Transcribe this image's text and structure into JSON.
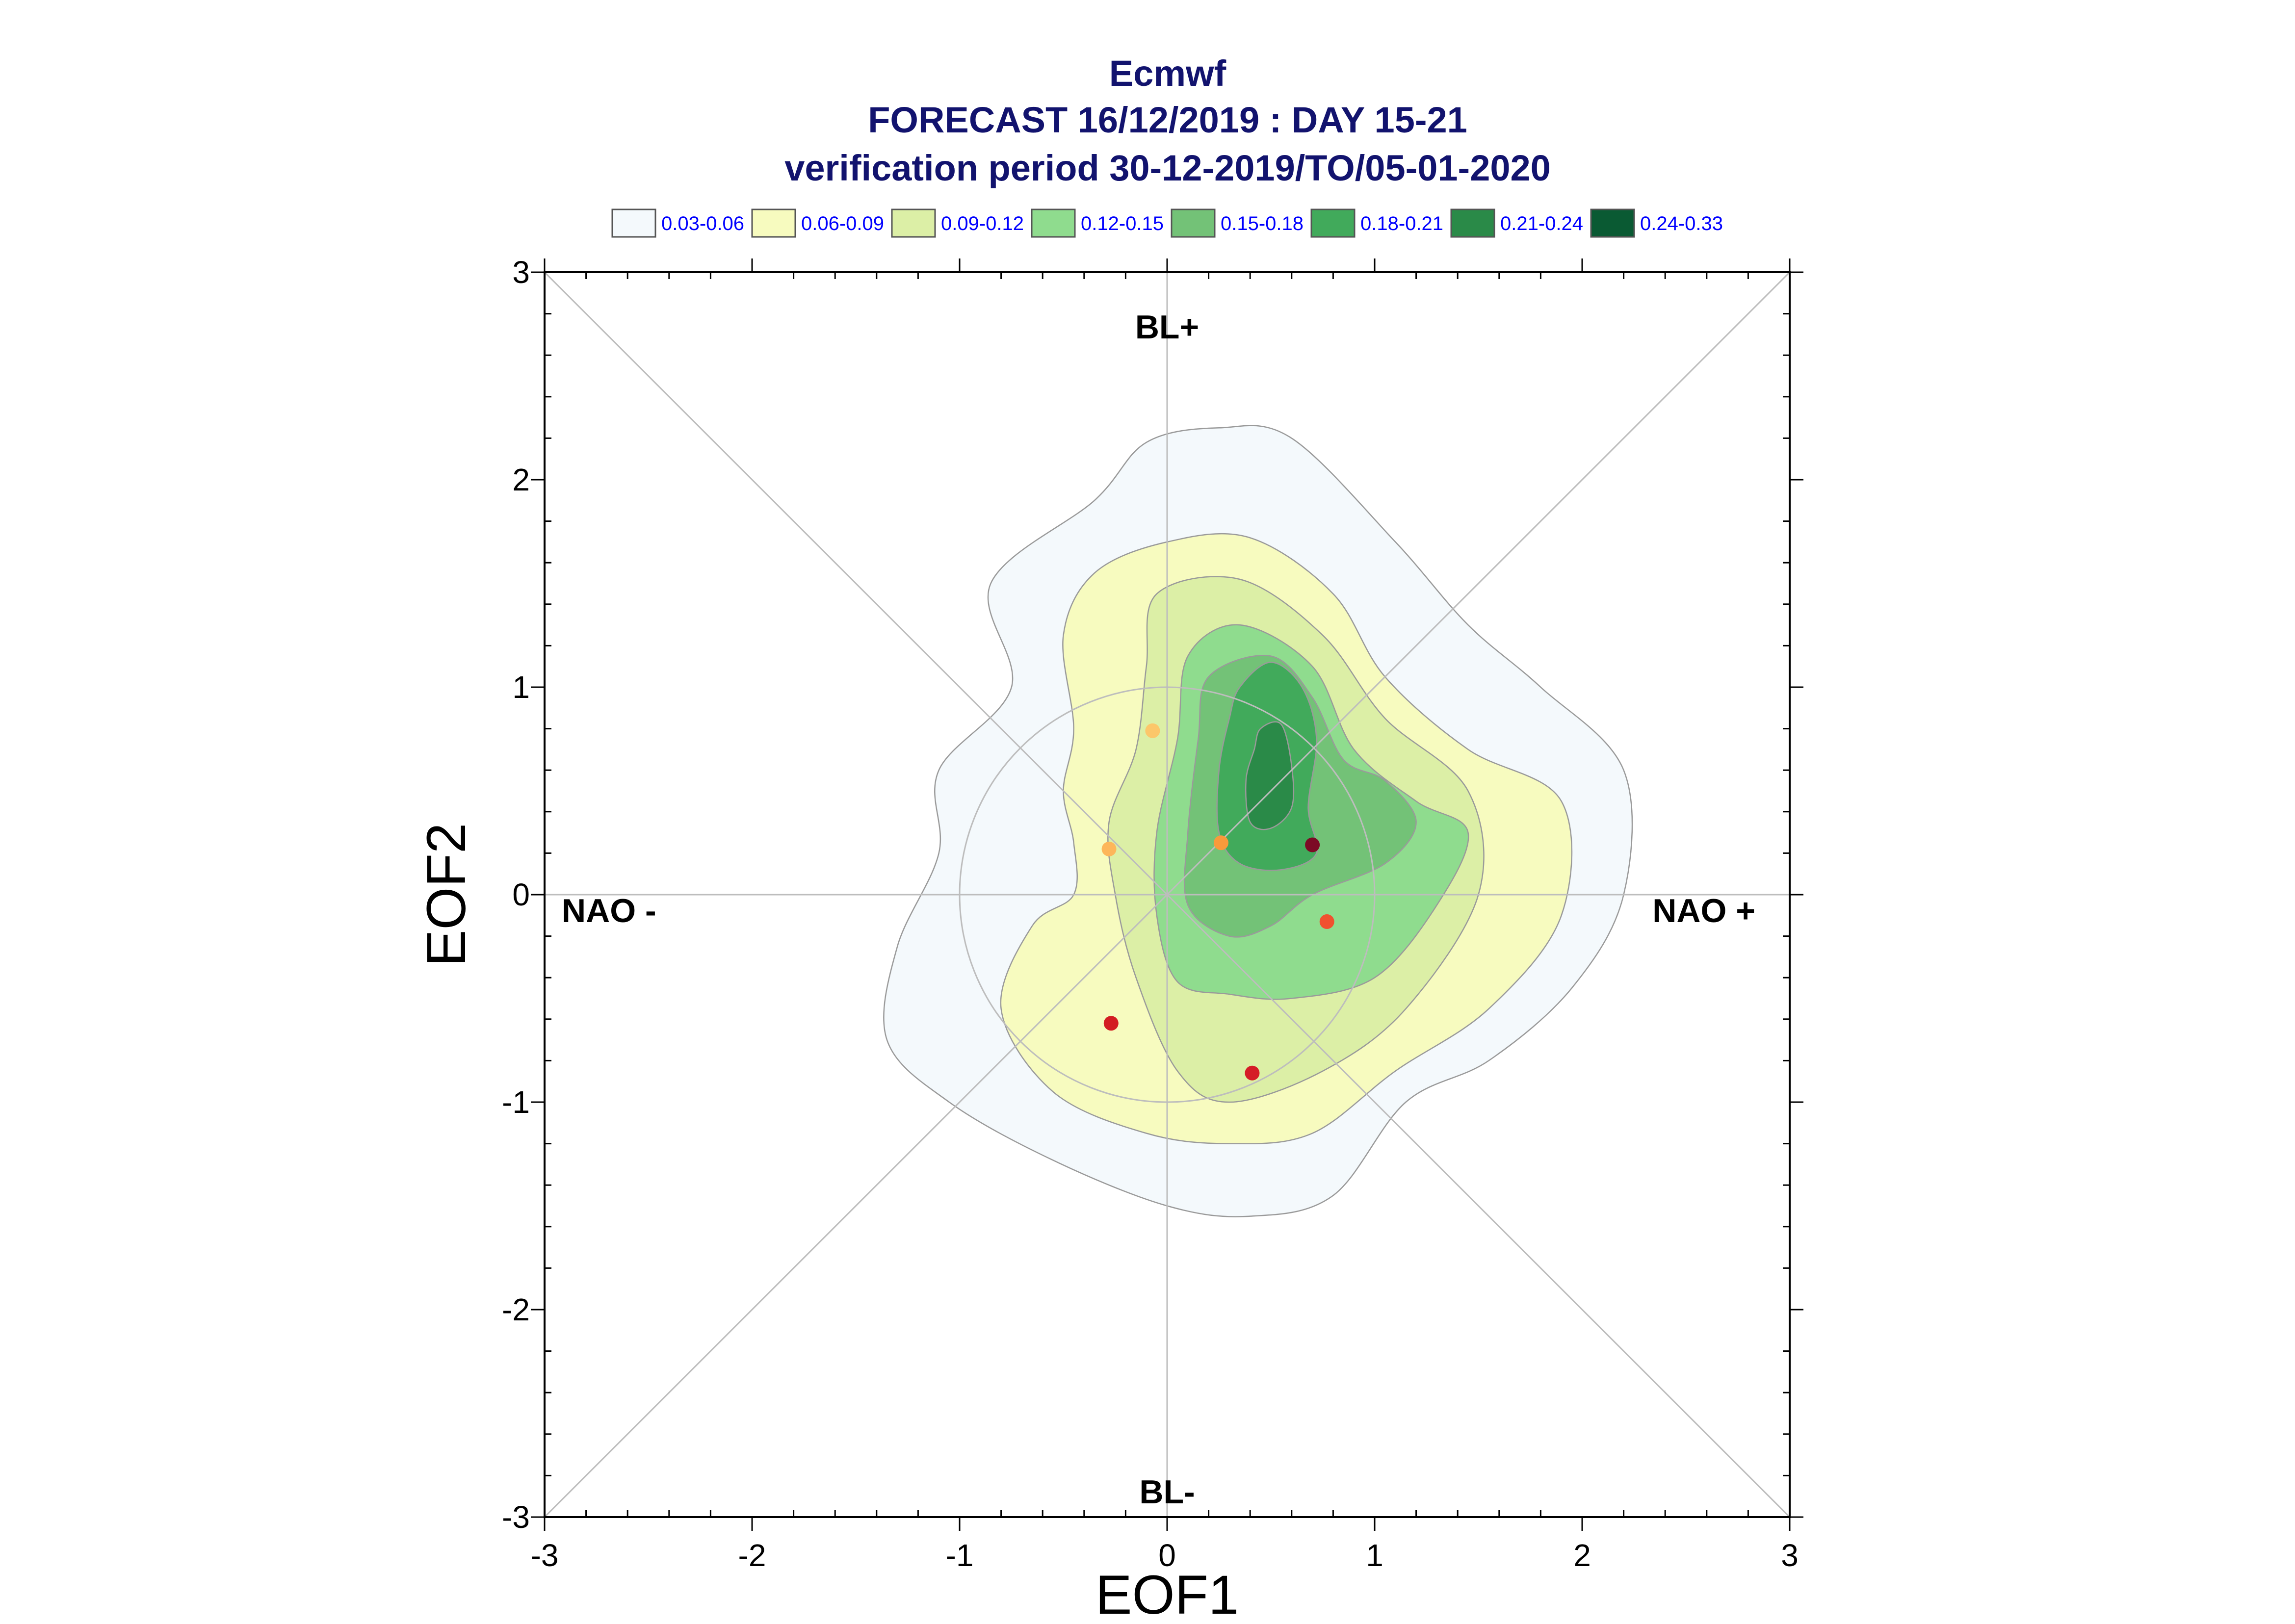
{
  "chart_data": {
    "type": "contour",
    "title_lines": [
      "Ecmwf",
      "FORECAST 16/12/2019 : DAY 15-21",
      "verification period 30-12-2019/TO/05-01-2020"
    ],
    "xlabel": "EOF1",
    "ylabel": "EOF2",
    "xlim": [
      -3,
      3
    ],
    "ylim": [
      -3,
      3
    ],
    "xticks": [
      "-3",
      "-2",
      "-1",
      "0",
      "1",
      "2",
      "3"
    ],
    "yticks": [
      "3",
      "2",
      "1",
      "0",
      "-1",
      "-2",
      "-3"
    ],
    "regime_labels": {
      "top": "BL+",
      "bottom": "BL-",
      "left": "NAO -",
      "right": "NAO +"
    },
    "legend": [
      {
        "label": "0.03-0.06",
        "color": "#f4f9fc"
      },
      {
        "label": "0.06-0.09",
        "color": "#f7fbbf"
      },
      {
        "label": "0.09-0.12",
        "color": "#dcefa6"
      },
      {
        "label": "0.12-0.15",
        "color": "#8fdc8e"
      },
      {
        "label": "0.15-0.18",
        "color": "#73c277"
      },
      {
        "label": "0.18-0.21",
        "color": "#41aa5b"
      },
      {
        "label": "0.21-0.24",
        "color": "#2a8a48"
      },
      {
        "label": "0.24-0.33",
        "color": "#0a5a33"
      }
    ],
    "reference_circle_radius": 1,
    "contours": [
      {
        "level": "0.03-0.06",
        "points": [
          [
            -0.35,
            1.9
          ],
          [
            -0.1,
            2.18
          ],
          [
            0.25,
            2.25
          ],
          [
            0.6,
            2.2
          ],
          [
            1.1,
            1.7
          ],
          [
            1.45,
            1.3
          ],
          [
            1.8,
            1.0
          ],
          [
            2.2,
            0.6
          ],
          [
            2.2,
            0.0
          ],
          [
            1.95,
            -0.45
          ],
          [
            1.55,
            -0.8
          ],
          [
            1.15,
            -1.0
          ],
          [
            0.8,
            -1.45
          ],
          [
            0.4,
            -1.55
          ],
          [
            0.0,
            -1.5
          ],
          [
            -0.55,
            -1.28
          ],
          [
            -1.05,
            -1.0
          ],
          [
            -1.35,
            -0.7
          ],
          [
            -1.3,
            -0.25
          ],
          [
            -1.1,
            0.2
          ],
          [
            -1.1,
            0.6
          ],
          [
            -0.75,
            1.0
          ],
          [
            -0.85,
            1.5
          ]
        ]
      },
      {
        "level": "0.06-0.09",
        "points": [
          [
            -0.35,
            1.55
          ],
          [
            0.0,
            1.7
          ],
          [
            0.4,
            1.72
          ],
          [
            0.8,
            1.45
          ],
          [
            1.05,
            1.05
          ],
          [
            1.45,
            0.7
          ],
          [
            1.9,
            0.45
          ],
          [
            1.9,
            -0.1
          ],
          [
            1.55,
            -0.55
          ],
          [
            1.1,
            -0.85
          ],
          [
            0.7,
            -1.15
          ],
          [
            0.3,
            -1.2
          ],
          [
            -0.1,
            -1.15
          ],
          [
            -0.55,
            -0.95
          ],
          [
            -0.8,
            -0.55
          ],
          [
            -0.65,
            -0.15
          ],
          [
            -0.45,
            0.0
          ],
          [
            -0.45,
            0.25
          ],
          [
            -0.5,
            0.5
          ],
          [
            -0.45,
            0.8
          ],
          [
            -0.5,
            1.25
          ]
        ]
      },
      {
        "level": "0.09-0.12",
        "points": [
          [
            -0.05,
            1.45
          ],
          [
            0.35,
            1.52
          ],
          [
            0.75,
            1.25
          ],
          [
            1.05,
            0.85
          ],
          [
            1.45,
            0.5
          ],
          [
            1.5,
            0.0
          ],
          [
            1.15,
            -0.55
          ],
          [
            0.75,
            -0.85
          ],
          [
            0.3,
            -1.0
          ],
          [
            0.05,
            -0.85
          ],
          [
            -0.15,
            -0.4
          ],
          [
            -0.25,
            0.0
          ],
          [
            -0.28,
            0.35
          ],
          [
            -0.15,
            0.7
          ],
          [
            -0.1,
            1.1
          ]
        ]
      },
      {
        "level": "0.12-0.15",
        "points": [
          [
            0.1,
            1.15
          ],
          [
            0.35,
            1.3
          ],
          [
            0.7,
            1.1
          ],
          [
            0.9,
            0.7
          ],
          [
            1.2,
            0.45
          ],
          [
            1.45,
            0.3
          ],
          [
            1.3,
            -0.05
          ],
          [
            1.0,
            -0.4
          ],
          [
            0.6,
            -0.5
          ],
          [
            0.3,
            -0.48
          ],
          [
            0.05,
            -0.42
          ],
          [
            -0.05,
            -0.1
          ],
          [
            -0.05,
            0.3
          ],
          [
            0.05,
            0.75
          ]
        ]
      },
      {
        "level": "0.15-0.18",
        "points": [
          [
            0.2,
            1.05
          ],
          [
            0.5,
            1.15
          ],
          [
            0.7,
            0.95
          ],
          [
            0.85,
            0.65
          ],
          [
            1.05,
            0.55
          ],
          [
            1.2,
            0.35
          ],
          [
            1.05,
            0.15
          ],
          [
            0.7,
            0.0
          ],
          [
            0.5,
            -0.15
          ],
          [
            0.3,
            -0.2
          ],
          [
            0.1,
            -0.05
          ],
          [
            0.1,
            0.3
          ],
          [
            0.15,
            0.75
          ]
        ]
      },
      {
        "level": "0.18-0.21",
        "points": [
          [
            0.35,
            1.0
          ],
          [
            0.5,
            1.12
          ],
          [
            0.65,
            1.0
          ],
          [
            0.72,
            0.75
          ],
          [
            0.68,
            0.42
          ],
          [
            0.72,
            0.2
          ],
          [
            0.55,
            0.12
          ],
          [
            0.35,
            0.15
          ],
          [
            0.25,
            0.3
          ],
          [
            0.25,
            0.6
          ],
          [
            0.3,
            0.85
          ]
        ]
      },
      {
        "level": "0.21-0.24",
        "points": [
          [
            0.45,
            0.8
          ],
          [
            0.55,
            0.82
          ],
          [
            0.6,
            0.62
          ],
          [
            0.6,
            0.42
          ],
          [
            0.5,
            0.32
          ],
          [
            0.4,
            0.35
          ],
          [
            0.38,
            0.55
          ],
          [
            0.42,
            0.7
          ]
        ]
      }
    ],
    "members": [
      {
        "x": -0.07,
        "y": 0.79,
        "color": "#fcc76a"
      },
      {
        "x": -0.28,
        "y": 0.22,
        "color": "#fdb65a"
      },
      {
        "x": 0.26,
        "y": 0.25,
        "color": "#f89a3b"
      },
      {
        "x": 0.7,
        "y": 0.24,
        "color": "#7c0a25"
      },
      {
        "x": 0.77,
        "y": -0.13,
        "color": "#f0512f"
      },
      {
        "x": -0.27,
        "y": -0.62,
        "color": "#d31d22"
      },
      {
        "x": 0.41,
        "y": -0.86,
        "color": "#d51c27"
      }
    ]
  }
}
